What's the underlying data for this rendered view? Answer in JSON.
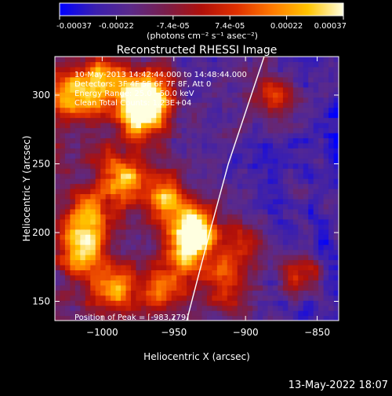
{
  "colorbar": {
    "ticks": [
      "-0.00037",
      "-0.00022",
      "-7.4e-05",
      "7.4e-05",
      "0.00022",
      "0.00037"
    ],
    "units": "(photons cm⁻² s⁻¹ asec⁻²)",
    "range": [
      -0.00037,
      0.00037
    ],
    "colormap": [
      "#0000ff",
      "#3a1fb0",
      "#5b2a8a",
      "#7a1e4a",
      "#b0100a",
      "#e03000",
      "#ff7a00",
      "#ffc400",
      "#ffffe0"
    ]
  },
  "info": {
    "line1": "10-May-2013 14:42:44.000 to 14:48:44.000",
    "line2": "Detectors: 3F 4F 5F 6F 7F 8F, Att 0",
    "line3": "Energy Range: 25.0 - 50.0 keV",
    "line4": "Clean    Total Counts: 1.23E+04"
  },
  "peak_label": "Position of Peak = [-983,279]",
  "footer_date": "13-May-2022 18:07",
  "chart_data": {
    "type": "heatmap",
    "title": "Reconstructed RHESSI Image",
    "xlabel": "Heliocentric X (arcsec)",
    "ylabel": "Heliocentric Y (arcsec)",
    "xlim": [
      -1033,
      -835
    ],
    "ylim": [
      136,
      328
    ],
    "xticks": [
      -1000,
      -950,
      -900,
      -850
    ],
    "yticks": [
      150,
      200,
      250,
      300
    ],
    "limb_curve": [
      [
        -941,
        136
      ],
      [
        -925,
        200
      ],
      [
        -912,
        250
      ],
      [
        -896,
        300
      ],
      [
        -887,
        328
      ]
    ],
    "bright_regions": [
      {
        "x": -974,
        "y": 287,
        "level": 0.95
      },
      {
        "x": -967,
        "y": 300,
        "level": 0.9
      },
      {
        "x": -985,
        "y": 240,
        "level": 0.8
      },
      {
        "x": -1010,
        "y": 212,
        "level": 0.75
      },
      {
        "x": -1015,
        "y": 185,
        "level": 0.72
      },
      {
        "x": -990,
        "y": 160,
        "level": 0.7
      },
      {
        "x": -935,
        "y": 205,
        "level": 0.85
      },
      {
        "x": -940,
        "y": 188,
        "level": 0.75
      },
      {
        "x": -955,
        "y": 225,
        "level": 0.7
      },
      {
        "x": -955,
        "y": 160,
        "level": 0.6
      },
      {
        "x": -1020,
        "y": 300,
        "level": 0.65
      },
      {
        "x": -1000,
        "y": 310,
        "level": 0.7
      },
      {
        "x": -905,
        "y": 190,
        "level": 0.55
      },
      {
        "x": -880,
        "y": 300,
        "level": 0.5
      },
      {
        "x": -860,
        "y": 170,
        "level": 0.45
      },
      {
        "x": -915,
        "y": 160,
        "level": 0.55
      }
    ]
  }
}
